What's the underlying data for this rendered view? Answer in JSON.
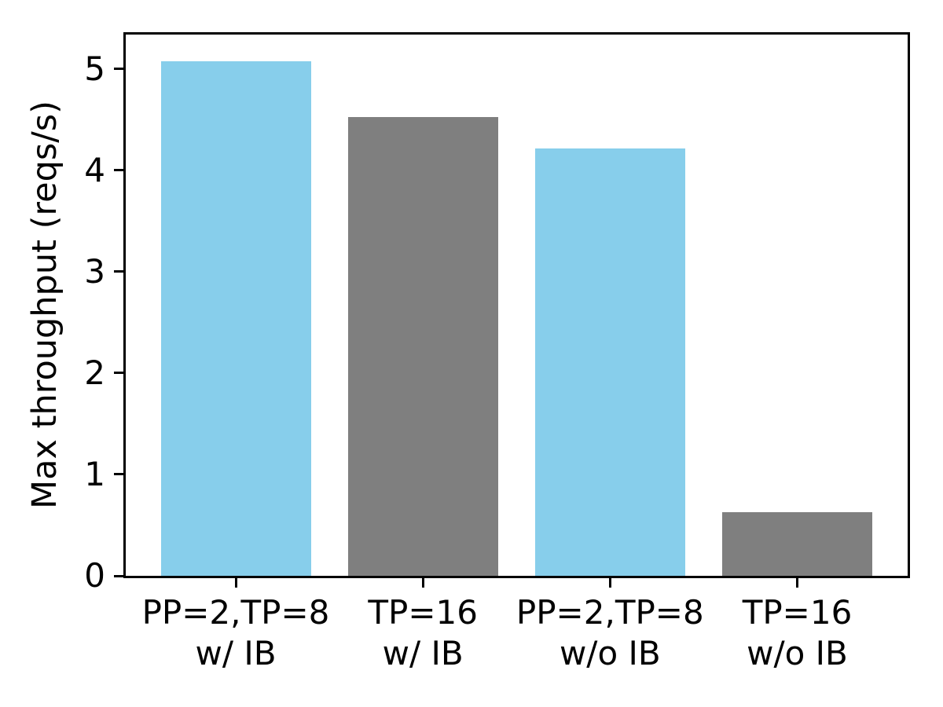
{
  "chart_data": {
    "type": "bar",
    "title": "",
    "ylabel": "Max throughput (reqs/s)",
    "xlabel": "",
    "categories": [
      "PP=2,TP=8\nw/ IB",
      "TP=16\nw/ IB",
      "PP=2,TP=8\nw/o IB",
      "TP=16\nw/o IB"
    ],
    "values": [
      5.08,
      4.53,
      4.22,
      0.63
    ],
    "bar_colors": [
      "#87ceeb",
      "#7f7f7f",
      "#87ceeb",
      "#7f7f7f"
    ],
    "yticks": [
      0,
      1,
      2,
      3,
      4,
      5
    ],
    "ylim": [
      0,
      5.34
    ],
    "grid": false,
    "legend": "none",
    "background": "#ffffff",
    "axis_color": "#000000",
    "text_color": "#000000"
  }
}
